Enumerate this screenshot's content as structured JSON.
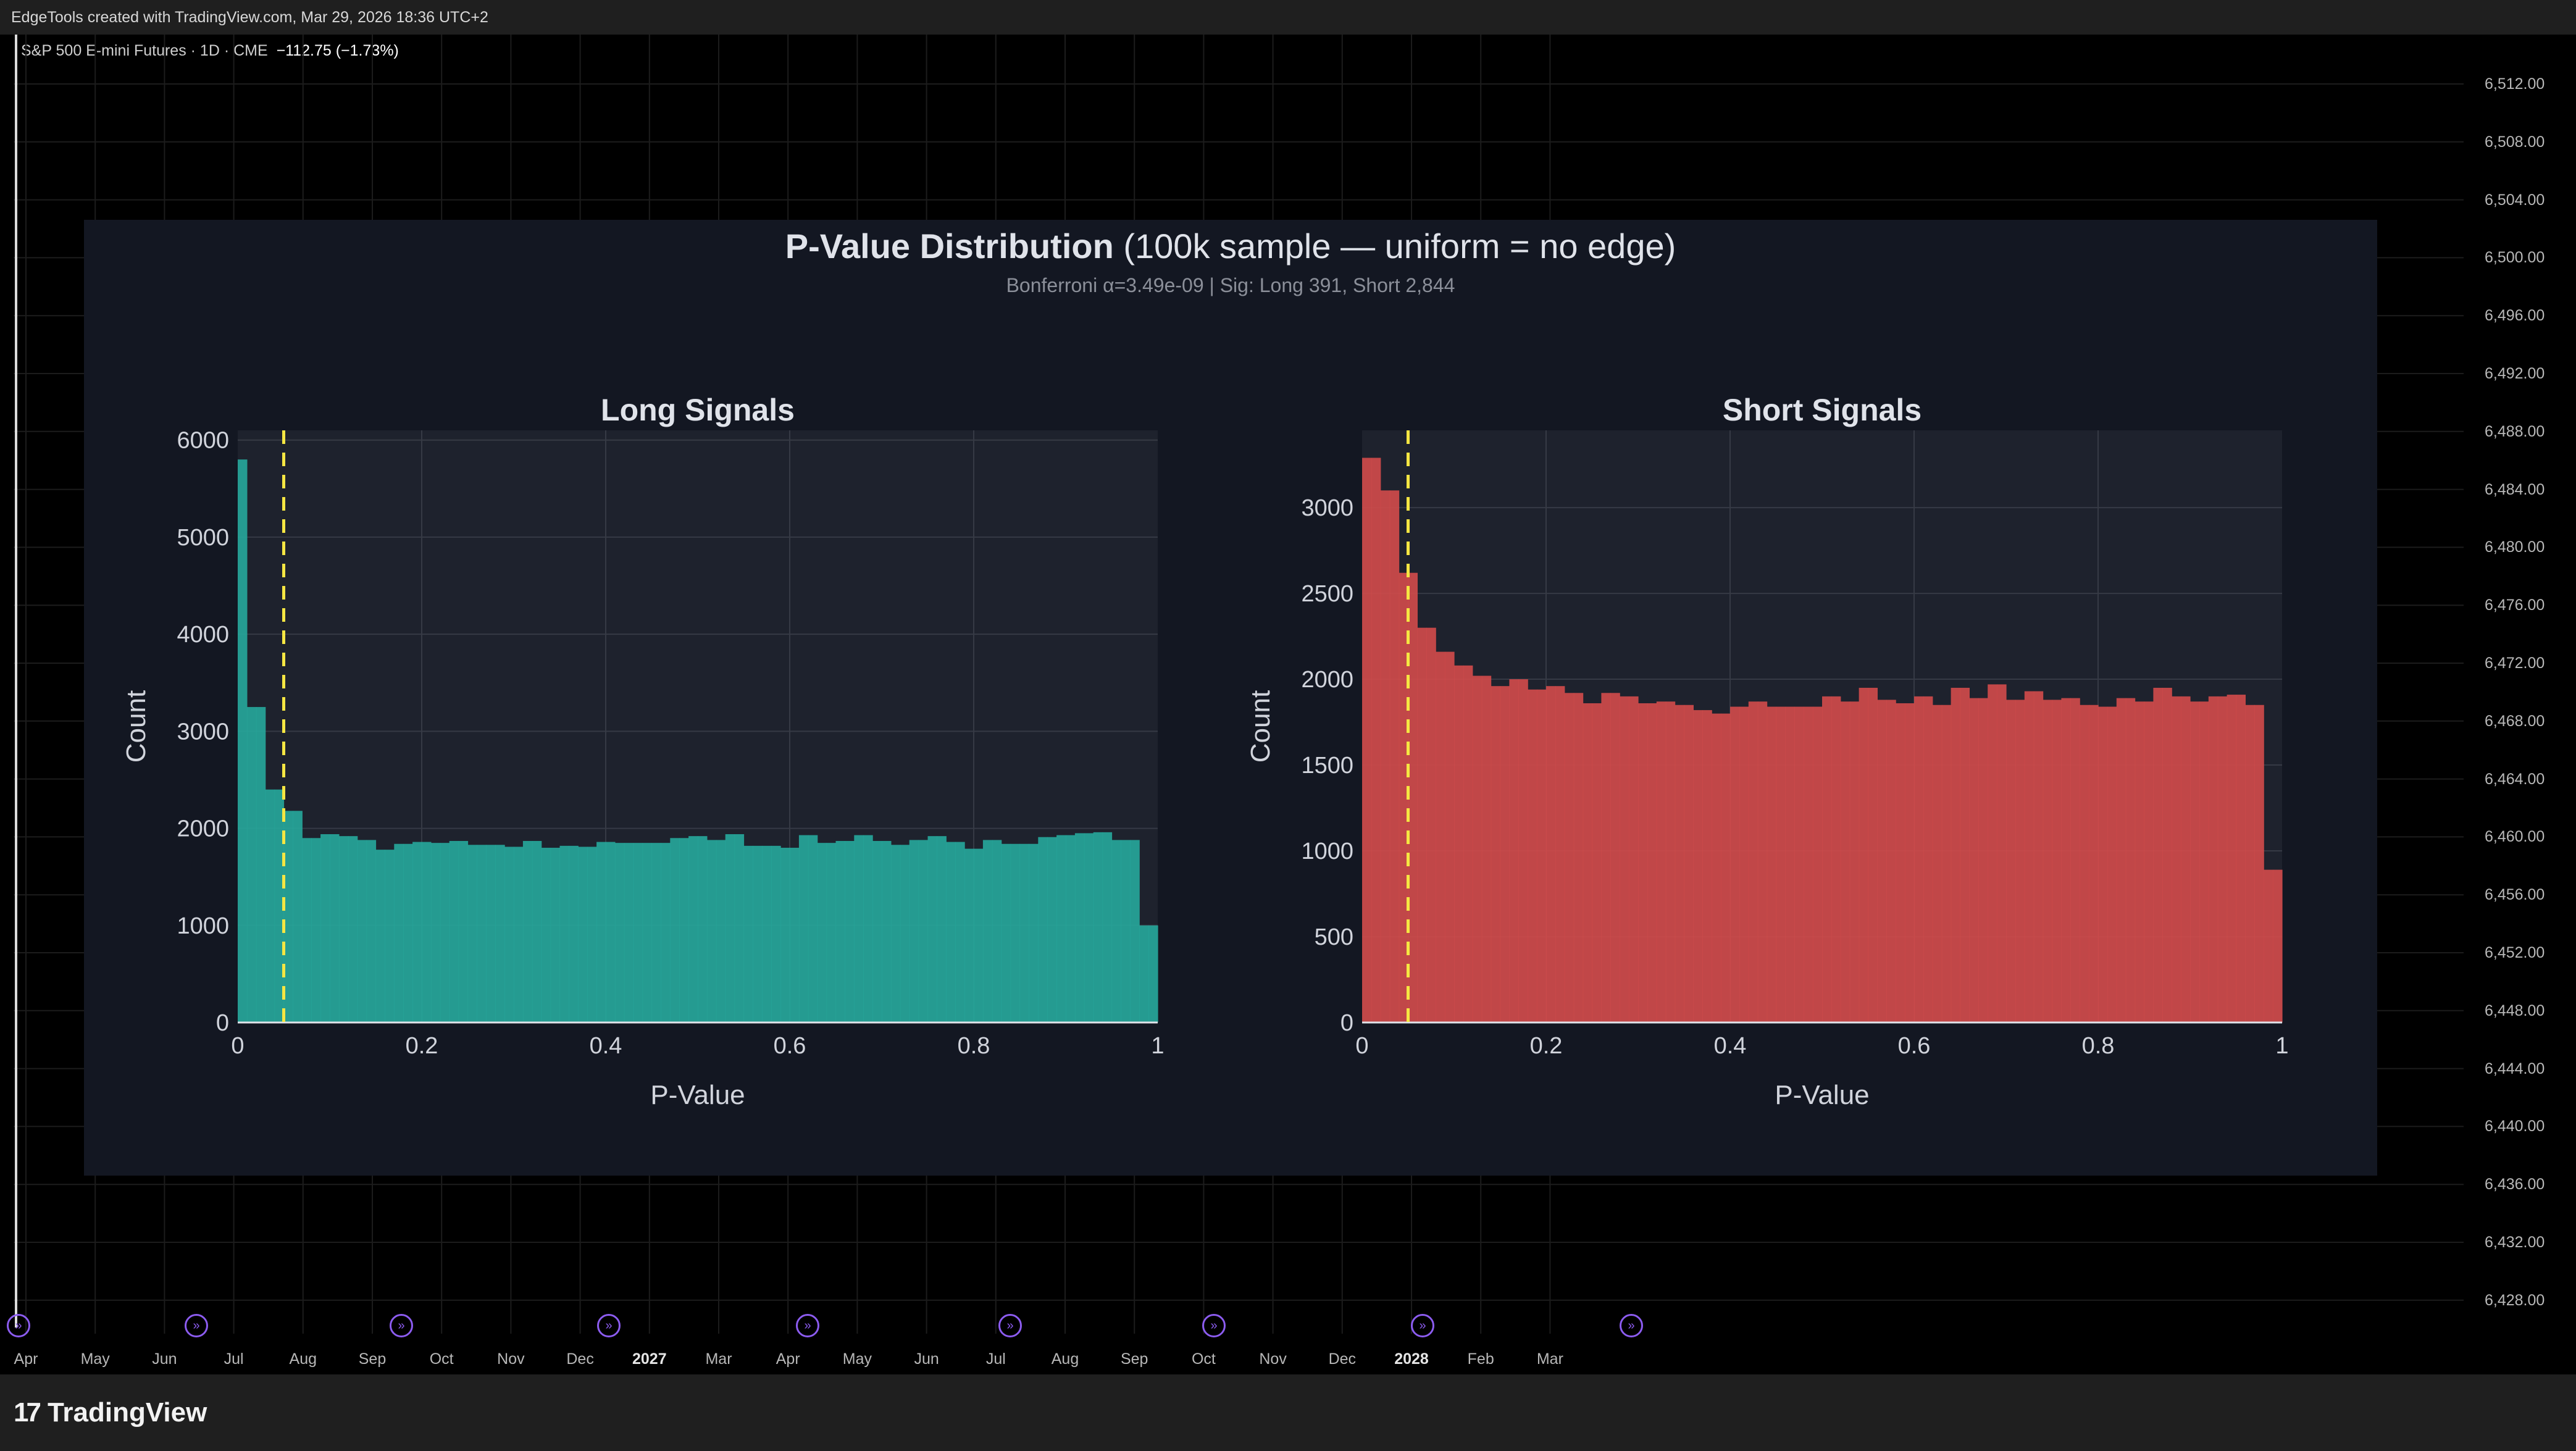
{
  "header": {
    "created_text": "EdgeTools created with TradingView.com, Mar 29, 2026 18:36 UTC+2"
  },
  "symbol": {
    "name": "S&P 500 E-mini Futures · 1D · CME",
    "change": "−112.75 (−1.73%)"
  },
  "price_axis": [
    "6,512.00",
    "6,508.00",
    "6,504.00",
    "6,500.00",
    "6,496.00",
    "6,492.00",
    "6,488.00",
    "6,484.00",
    "6,480.00",
    "6,476.00",
    "6,472.00",
    "6,468.00",
    "6,464.00",
    "6,460.00",
    "6,456.00",
    "6,452.00",
    "6,448.00",
    "6,444.00",
    "6,440.00",
    "6,436.00",
    "6,432.00",
    "6,428.00"
  ],
  "time_axis": [
    {
      "label": "Apr",
      "bold": false
    },
    {
      "label": "May",
      "bold": false
    },
    {
      "label": "Jun",
      "bold": false
    },
    {
      "label": "Jul",
      "bold": false
    },
    {
      "label": "Aug",
      "bold": false
    },
    {
      "label": "Sep",
      "bold": false
    },
    {
      "label": "Oct",
      "bold": false
    },
    {
      "label": "Nov",
      "bold": false
    },
    {
      "label": "Dec",
      "bold": false
    },
    {
      "label": "2027",
      "bold": true
    },
    {
      "label": "Mar",
      "bold": false
    },
    {
      "label": "Apr",
      "bold": false
    },
    {
      "label": "May",
      "bold": false
    },
    {
      "label": "Jun",
      "bold": false
    },
    {
      "label": "Jul",
      "bold": false
    },
    {
      "label": "Aug",
      "bold": false
    },
    {
      "label": "Sep",
      "bold": false
    },
    {
      "label": "Oct",
      "bold": false
    },
    {
      "label": "Nov",
      "bold": false
    },
    {
      "label": "Dec",
      "bold": false
    },
    {
      "label": "2028",
      "bold": true
    },
    {
      "label": "Feb",
      "bold": false
    },
    {
      "label": "Mar",
      "bold": false
    }
  ],
  "brand": {
    "name": "TradingView",
    "logo_text": "17"
  },
  "overlay": {
    "title_bold": "P-Value Distribution",
    "title_rest": " (100k sample — uniform = no edge)",
    "subtitle": "Bonferroni α=3.49e-09 | Sig: Long 391, Short 2,844"
  },
  "chart_data": [
    {
      "type": "bar",
      "title": "Long Signals",
      "xlabel": "P-Value",
      "ylabel": "Count",
      "xlim": [
        0,
        1
      ],
      "ylim": [
        0,
        6100
      ],
      "xticks": [
        0,
        0.2,
        0.4,
        0.6,
        0.8,
        1
      ],
      "xtick_labels": [
        "0",
        "0.2",
        "0.4",
        "0.6",
        "0.8",
        "1"
      ],
      "yticks": [
        0,
        1000,
        2000,
        3000,
        4000,
        5000,
        6000
      ],
      "ytick_labels": [
        "0",
        "1000",
        "2000",
        "3000",
        "4000",
        "5000",
        "6000"
      ],
      "bin_width": 0.01,
      "threshold_line_x": 0.05,
      "color": "#26a69a",
      "values": [
        5800,
        3250,
        3250,
        2400,
        2400,
        2180,
        2180,
        1900,
        1900,
        1940,
        1940,
        1920,
        1920,
        1880,
        1880,
        1780,
        1780,
        1840,
        1840,
        1860,
        1860,
        1850,
        1850,
        1870,
        1870,
        1830,
        1830,
        1830,
        1830,
        1810,
        1810,
        1870,
        1870,
        1800,
        1800,
        1820,
        1820,
        1810,
        1810,
        1860,
        1860,
        1850,
        1850,
        1850,
        1850,
        1850,
        1850,
        1900,
        1900,
        1920,
        1920,
        1880,
        1880,
        1940,
        1940,
        1820,
        1820,
        1820,
        1820,
        1800,
        1800,
        1930,
        1930,
        1850,
        1850,
        1870,
        1870,
        1930,
        1930,
        1870,
        1870,
        1830,
        1830,
        1880,
        1880,
        1920,
        1920,
        1860,
        1860,
        1790,
        1790,
        1880,
        1880,
        1840,
        1840,
        1840,
        1840,
        1910,
        1910,
        1930,
        1930,
        1950,
        1950,
        1960,
        1960,
        1880,
        1880,
        1880,
        1000,
        1000
      ]
    },
    {
      "type": "bar",
      "title": "Short Signals",
      "xlabel": "P-Value",
      "ylabel": "Count",
      "xlim": [
        0,
        1
      ],
      "ylim": [
        0,
        3450
      ],
      "xticks": [
        0,
        0.2,
        0.4,
        0.6,
        0.8,
        1
      ],
      "xtick_labels": [
        "0",
        "0.2",
        "0.4",
        "0.6",
        "0.8",
        "1"
      ],
      "yticks": [
        0,
        500,
        1000,
        1500,
        2000,
        2500,
        3000
      ],
      "ytick_labels": [
        "0",
        "500",
        "1000",
        "1500",
        "2000",
        "2500",
        "3000"
      ],
      "bin_width": 0.01,
      "threshold_line_x": 0.05,
      "color": "#cf4b4b",
      "values": [
        3290,
        3290,
        3100,
        3100,
        2620,
        2620,
        2300,
        2300,
        2160,
        2160,
        2080,
        2080,
        2020,
        2020,
        1960,
        1960,
        2000,
        2000,
        1940,
        1940,
        1960,
        1960,
        1920,
        1920,
        1860,
        1860,
        1920,
        1920,
        1900,
        1900,
        1860,
        1860,
        1870,
        1870,
        1850,
        1850,
        1820,
        1820,
        1800,
        1800,
        1840,
        1840,
        1870,
        1870,
        1840,
        1840,
        1840,
        1840,
        1840,
        1840,
        1900,
        1900,
        1870,
        1870,
        1950,
        1950,
        1880,
        1880,
        1860,
        1860,
        1900,
        1900,
        1850,
        1850,
        1950,
        1950,
        1890,
        1890,
        1970,
        1970,
        1880,
        1880,
        1930,
        1930,
        1880,
        1880,
        1890,
        1890,
        1850,
        1850,
        1840,
        1840,
        1890,
        1890,
        1870,
        1870,
        1950,
        1950,
        1900,
        1900,
        1870,
        1870,
        1900,
        1900,
        1910,
        1910,
        1850,
        1850,
        890,
        890
      ]
    }
  ]
}
